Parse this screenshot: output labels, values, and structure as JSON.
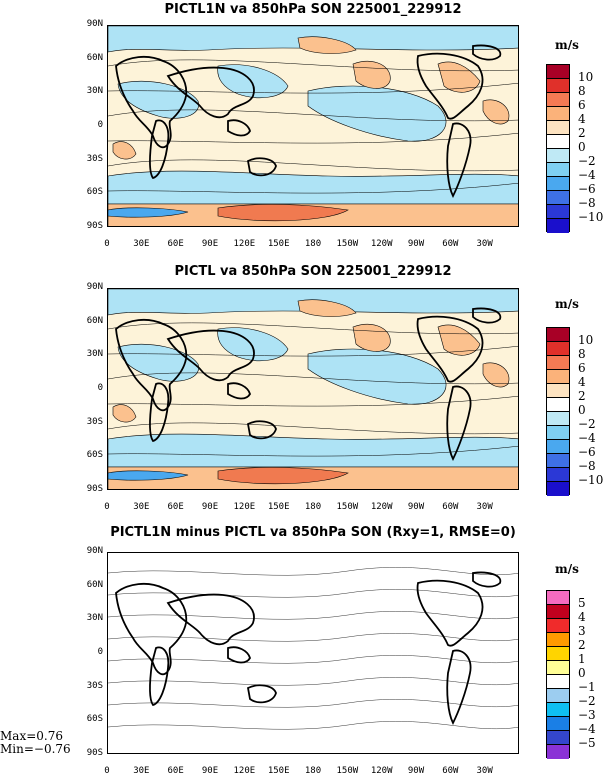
{
  "panels": [
    {
      "title": "PICTL1N va 850hPa SON 225001_229912",
      "units": "m/s",
      "colorbar": {
        "labels": [
          "10",
          "8",
          "6",
          "4",
          "2",
          "0",
          "−2",
          "−4",
          "−6",
          "−8",
          "−10"
        ],
        "colors": [
          "#a80026",
          "#e0302a",
          "#f57a54",
          "#fbb27a",
          "#fde3c1",
          "#ffffff",
          "#bfe9f5",
          "#7fd0f2",
          "#4aa8ef",
          "#3e70e6",
          "#2b38d6",
          "#1a0fcc"
        ]
      },
      "map_palette": {
        "cream": "#fdf3d9",
        "pos": "#fbc18e",
        "neg": "#aee3f5",
        "pos_strong": "#f07a50",
        "neg_strong": "#4aa8ef"
      }
    },
    {
      "title": "PICTL va 850hPa SON 225001_229912",
      "units": "m/s",
      "colorbar": {
        "labels": [
          "10",
          "8",
          "6",
          "4",
          "2",
          "0",
          "−2",
          "−4",
          "−6",
          "−8",
          "−10"
        ],
        "colors": [
          "#a80026",
          "#e0302a",
          "#f57a54",
          "#fbb27a",
          "#fde3c1",
          "#ffffff",
          "#bfe9f5",
          "#7fd0f2",
          "#4aa8ef",
          "#3e70e6",
          "#2b38d6",
          "#1a0fcc"
        ]
      },
      "map_palette": {
        "cream": "#fdf3d9",
        "pos": "#fbc18e",
        "neg": "#aee3f5",
        "pos_strong": "#f07a50",
        "neg_strong": "#4aa8ef"
      }
    },
    {
      "title": "PICTL1N minus PICTL va 850hPa SON (Rxy=1, RMSE=0)",
      "units": "m/s",
      "colorbar": {
        "labels": [
          "5",
          "4",
          "3",
          "2",
          "1",
          "0",
          "−1",
          "−2",
          "−3",
          "−4",
          "−5"
        ],
        "colors": [
          "#f56bbf",
          "#c1001e",
          "#f02b2b",
          "#ff9a00",
          "#ffd400",
          "#fffe96",
          "#ffffff",
          "#9ccdf0",
          "#0fbff2",
          "#1a7fe6",
          "#3446cc",
          "#8a32d6"
        ]
      },
      "map_palette": {
        "cream": "#ffffff",
        "pos": "#ffffff",
        "neg": "#ffffff",
        "pos_strong": "#ffffff",
        "neg_strong": "#ffffff"
      }
    }
  ],
  "axes": {
    "lat_labels": [
      "90N",
      "60N",
      "30N",
      "0",
      "30S",
      "60S",
      "90S"
    ],
    "lon_labels": [
      "0",
      "30E",
      "60E",
      "90E",
      "120E",
      "150E",
      "180",
      "150W",
      "120W",
      "90W",
      "60W",
      "30W"
    ]
  },
  "stats": {
    "max": "Max=0.76",
    "min": "Min=−0.76"
  }
}
